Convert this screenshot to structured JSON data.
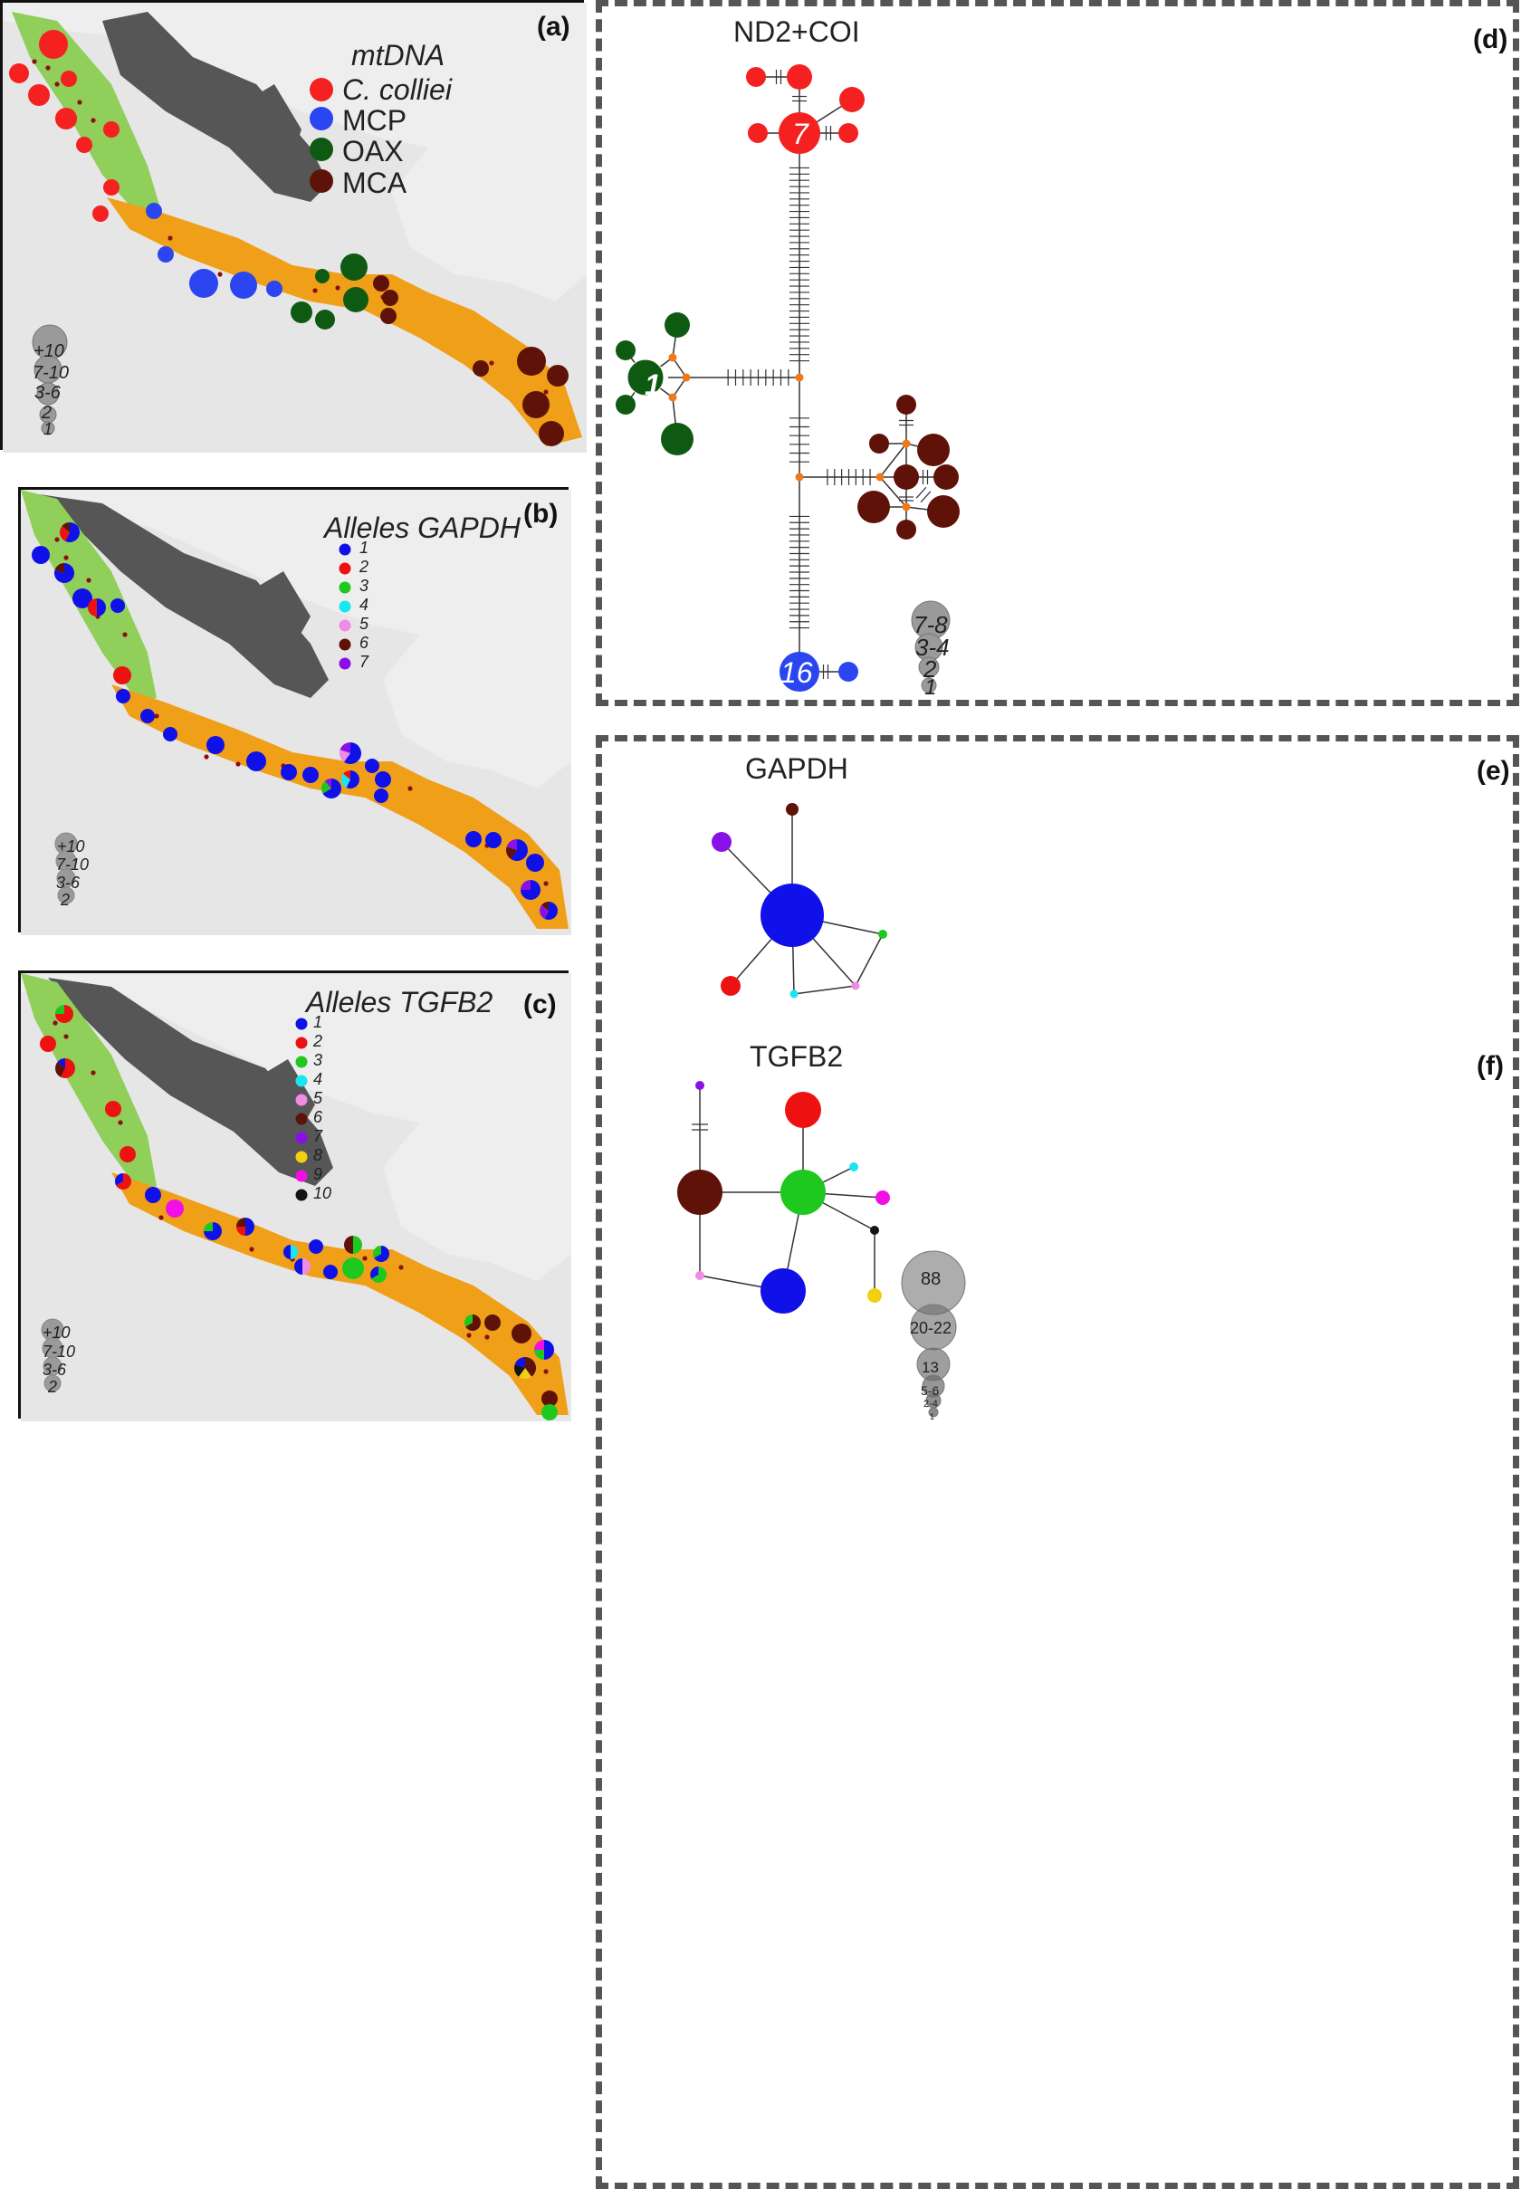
{
  "colors": {
    "map_bg": "#e6e6e6",
    "land_light": "#eeeeee",
    "highland": "#565656",
    "north_range": "#8fcf5a",
    "south_range": "#f0a018",
    "site": "#8a1010",
    "node_orange": "#f07818",
    "size_gray": "#9a9a9a"
  },
  "panels": {
    "a": {
      "label": "(a)"
    },
    "b": {
      "label": "(b)"
    },
    "c": {
      "label": "(c)"
    },
    "d": {
      "label": "(d)",
      "title": "ND2+COI"
    },
    "e": {
      "label": "(e)",
      "title": "GAPDH"
    },
    "f": {
      "label": "(f)",
      "title": "TGFB2"
    }
  },
  "legend_mtdna": {
    "title": "mtDNA",
    "items": [
      {
        "label": "C. colliei",
        "color": "#f52020",
        "italic": true
      },
      {
        "label": "MCP",
        "color": "#2b45f0",
        "italic": false
      },
      {
        "label": "OAX",
        "color": "#0f5a12",
        "italic": false
      },
      {
        "label": "MCA",
        "color": "#5e1208",
        "italic": false
      }
    ]
  },
  "legend_gapdh": {
    "title": "Alleles GAPDH",
    "items": [
      {
        "label": "1",
        "color": "#1010e8"
      },
      {
        "label": "2",
        "color": "#ee1111"
      },
      {
        "label": "3",
        "color": "#1ec81e"
      },
      {
        "label": "4",
        "color": "#19e6f0"
      },
      {
        "label": "5",
        "color": "#f08ce6"
      },
      {
        "label": "6",
        "color": "#5e1208"
      },
      {
        "label": "7",
        "color": "#8a10e8"
      }
    ]
  },
  "legend_tgfb2": {
    "title": "Alleles TGFB2",
    "items": [
      {
        "label": "1",
        "color": "#1010e8"
      },
      {
        "label": "2",
        "color": "#ee1111"
      },
      {
        "label": "3",
        "color": "#1ec81e"
      },
      {
        "label": "4",
        "color": "#19e6f0"
      },
      {
        "label": "5",
        "color": "#f08ce6"
      },
      {
        "label": "6",
        "color": "#5e1208"
      },
      {
        "label": "7",
        "color": "#8a10e8"
      },
      {
        "label": "8",
        "color": "#f2d010"
      },
      {
        "label": "9",
        "color": "#f010e6"
      },
      {
        "label": "10",
        "color": "#151515"
      }
    ]
  },
  "size_scale_map_a": [
    "+10",
    "7-10",
    "3-6",
    "2",
    "1"
  ],
  "size_scale_map_bc": [
    "+10",
    "7-10",
    "3-6",
    "2"
  ],
  "size_scale_d": [
    "7-8",
    "3-4",
    "2",
    "1"
  ],
  "size_scale_f": [
    "88",
    "20-22",
    "13",
    "5-6",
    "2-4",
    "1"
  ],
  "network_d_counts": {
    "red_center": "7",
    "green_center": "1",
    "blue_center": "16"
  }
}
